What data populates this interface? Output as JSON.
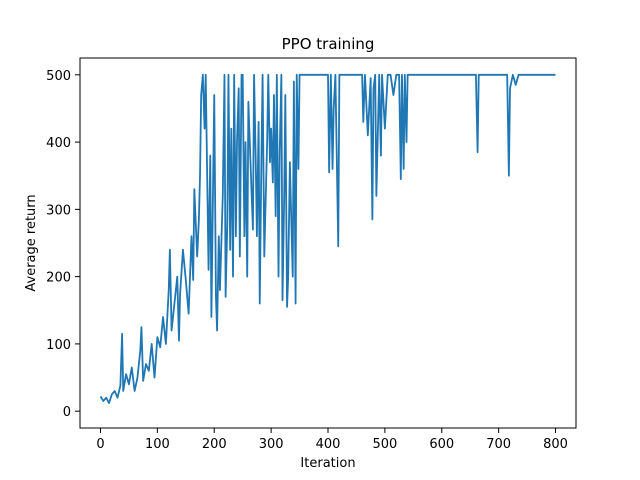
{
  "chart_data": {
    "type": "line",
    "title": "PPO training",
    "xlabel": "Iteration",
    "ylabel": "Average return",
    "xlim": [
      -36,
      836
    ],
    "ylim": [
      -25,
      525
    ],
    "xticks": [
      0,
      100,
      200,
      300,
      400,
      500,
      600,
      700,
      800
    ],
    "yticks": [
      0,
      100,
      200,
      300,
      400,
      500
    ],
    "grid": false,
    "legend": "none",
    "series": [
      {
        "color": "#1f77b4",
        "x": [
          0,
          5,
          10,
          15,
          20,
          25,
          30,
          35,
          38,
          40,
          45,
          50,
          55,
          60,
          65,
          70,
          72,
          75,
          80,
          85,
          90,
          95,
          100,
          105,
          110,
          115,
          120,
          122,
          125,
          130,
          135,
          138,
          140,
          145,
          150,
          155,
          160,
          163,
          165,
          170,
          173,
          175,
          177,
          180,
          183,
          185,
          190,
          193,
          195,
          200,
          203,
          205,
          208,
          210,
          215,
          218,
          220,
          223,
          225,
          228,
          230,
          233,
          235,
          238,
          240,
          243,
          245,
          248,
          250,
          253,
          255,
          258,
          260,
          265,
          268,
          270,
          273,
          275,
          278,
          280,
          283,
          285,
          288,
          290,
          293,
          295,
          298,
          300,
          303,
          305,
          308,
          310,
          313,
          315,
          318,
          320,
          323,
          325,
          328,
          330,
          333,
          335,
          338,
          340,
          343,
          345,
          348,
          350,
          353,
          355,
          360,
          370,
          380,
          390,
          400,
          402,
          405,
          408,
          410,
          413,
          415,
          418,
          420,
          425,
          430,
          440,
          450,
          460,
          462,
          465,
          470,
          475,
          478,
          480,
          483,
          485,
          490,
          493,
          495,
          500,
          505,
          510,
          515,
          520,
          525,
          528,
          530,
          533,
          535,
          538,
          540,
          543,
          545,
          550,
          560,
          580,
          600,
          620,
          640,
          660,
          663,
          665,
          670,
          690,
          700,
          710,
          715,
          718,
          720,
          725,
          730,
          735,
          740,
          760,
          780,
          800
        ],
        "y": [
          22,
          15,
          20,
          12,
          25,
          30,
          20,
          38,
          115,
          30,
          55,
          40,
          65,
          30,
          50,
          90,
          125,
          45,
          70,
          60,
          100,
          50,
          110,
          95,
          140,
          100,
          180,
          240,
          120,
          160,
          200,
          105,
          175,
          240,
          195,
          145,
          260,
          195,
          330,
          230,
          285,
          350,
          470,
          500,
          420,
          500,
          210,
          380,
          140,
          470,
          170,
          120,
          260,
          180,
          320,
          500,
          170,
          280,
          500,
          240,
          420,
          200,
          500,
          260,
          400,
          480,
          230,
          500,
          500,
          260,
          400,
          200,
          460,
          340,
          270,
          500,
          370,
          260,
          430,
          160,
          380,
          500,
          230,
          300,
          400,
          500,
          370,
          420,
          340,
          470,
          290,
          500,
          200,
          380,
          500,
          165,
          320,
          470,
          155,
          200,
          370,
          300,
          200,
          490,
          160,
          500,
          360,
          500,
          500,
          500,
          500,
          500,
          500,
          500,
          500,
          355,
          500,
          360,
          450,
          500,
          400,
          245,
          500,
          500,
          500,
          500,
          500,
          500,
          430,
          500,
          410,
          495,
          285,
          480,
          500,
          320,
          500,
          380,
          500,
          420,
          500,
          500,
          470,
          500,
          500,
          345,
          500,
          360,
          500,
          400,
          500,
          500,
          500,
          500,
          500,
          500,
          500,
          500,
          500,
          500,
          385,
          500,
          500,
          500,
          500,
          500,
          500,
          350,
          480,
          500,
          485,
          500,
          500,
          500,
          500,
          500
        ]
      }
    ]
  }
}
